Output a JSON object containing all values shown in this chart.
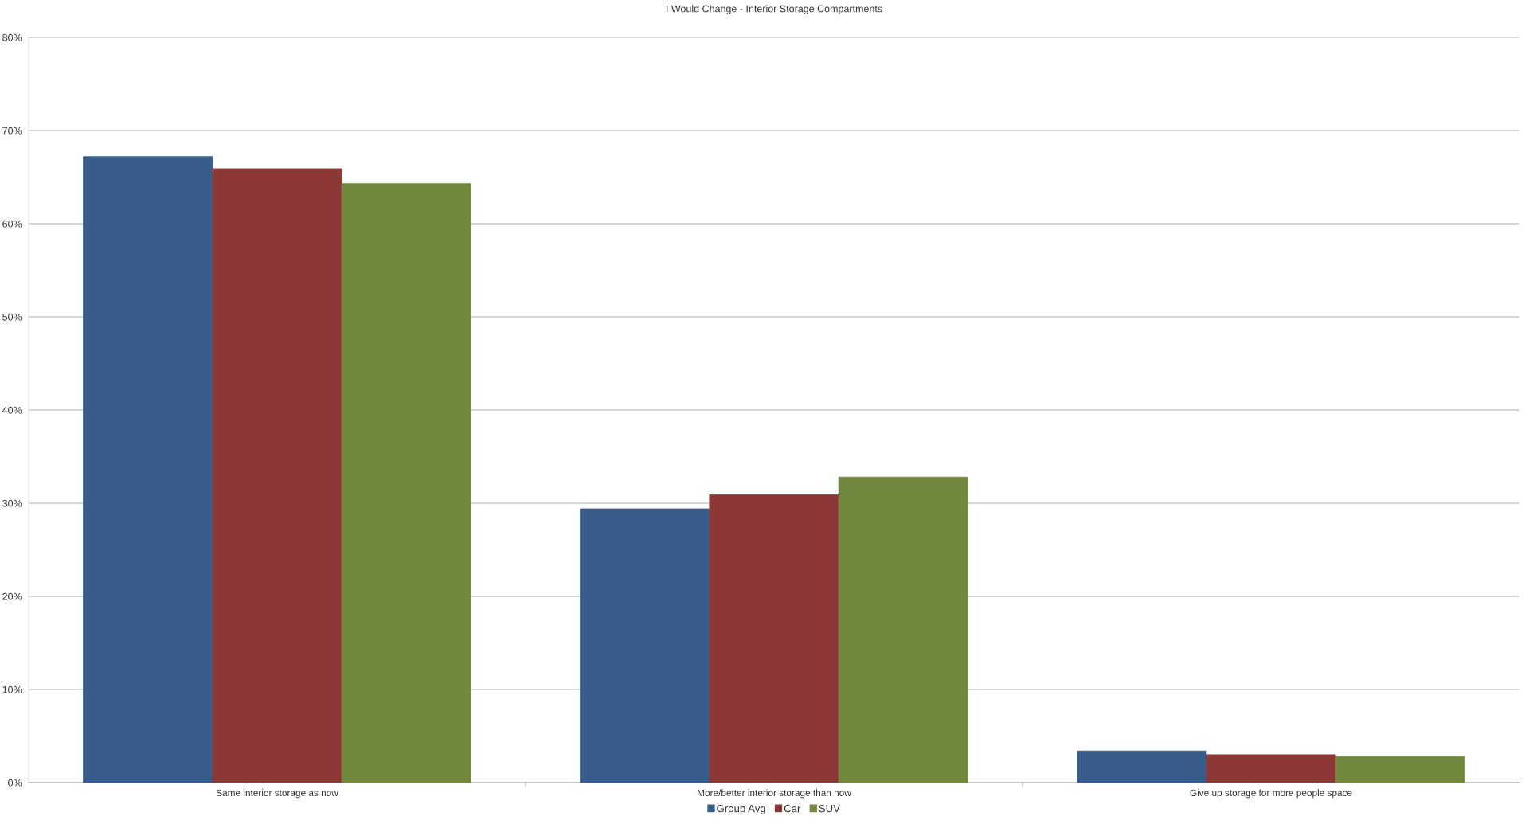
{
  "chart_data": {
    "type": "bar",
    "title": "I Would Change - Interior Storage Compartments",
    "categories": [
      "Same interior storage as now",
      "More/better interior storage than now",
      "Give up storage for more people space"
    ],
    "series": [
      {
        "name": "Group Avg",
        "color": "#385d8a",
        "values": [
          67.2,
          29.4,
          3.4
        ]
      },
      {
        "name": "Car",
        "color": "#8c3836",
        "values": [
          65.9,
          30.9,
          3.0
        ]
      },
      {
        "name": "SUV",
        "color": "#71893e",
        "values": [
          64.3,
          32.8,
          2.8
        ]
      }
    ],
    "ylim": [
      0,
      80
    ],
    "yticks": [
      {
        "value": 0,
        "label": "0%"
      },
      {
        "value": 10,
        "label": "10%"
      },
      {
        "value": 20,
        "label": "20%"
      },
      {
        "value": 30,
        "label": "30%"
      },
      {
        "value": 40,
        "label": "40%"
      },
      {
        "value": 50,
        "label": "50%"
      },
      {
        "value": 60,
        "label": "60%"
      },
      {
        "value": 70,
        "label": "70%"
      },
      {
        "value": 80,
        "label": "80%"
      }
    ],
    "grid": "y",
    "legend": "bottom"
  }
}
